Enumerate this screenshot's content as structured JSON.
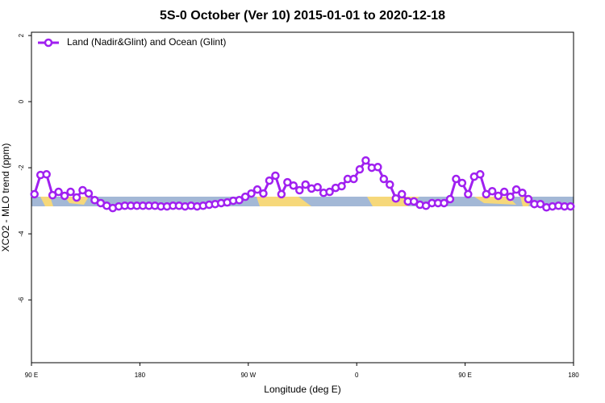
{
  "chart_data": {
    "type": "line",
    "title": "5S-0 October (Ver 10)   2015-01-01 to 2020-12-18",
    "xlabel": "Longitude (deg E)",
    "ylabel": "XCO2 - MLO trend (ppm)",
    "xlim": [
      90,
      540
    ],
    "ylim": [
      -7.9,
      2.1
    ],
    "xticks": [
      {
        "value": 90,
        "label": "90 E"
      },
      180,
      {
        "value": 270,
        "label": "90 W"
      },
      {
        "value": 360,
        "label": "0"
      },
      {
        "value": 450,
        "label": "90 E"
      },
      {
        "value": 540,
        "label": "180"
      }
    ],
    "yticks": [
      2,
      0,
      -2,
      -4,
      -6
    ],
    "legend": "top-left",
    "x": [
      92.5,
      97.5,
      102.5,
      107.5,
      112.5,
      117.5,
      122.5,
      127.5,
      132.5,
      137.5,
      142.5,
      147.5,
      152.5,
      157.5,
      162.5,
      167.5,
      172.5,
      177.5,
      182.5,
      187.5,
      192.5,
      197.5,
      202.5,
      207.5,
      212.5,
      217.5,
      222.5,
      227.5,
      232.5,
      237.5,
      242.5,
      247.5,
      252.5,
      257.5,
      262.5,
      267.5,
      272.5,
      277.5,
      282.5,
      287.5,
      292.5,
      297.5,
      302.5,
      307.5,
      312.5,
      317.5,
      322.5,
      327.5,
      332.5,
      337.5,
      342.5,
      347.5,
      352.5,
      357.5,
      362.5,
      367.5,
      372.5,
      377.5,
      382.5,
      387.5,
      392.5,
      397.5,
      402.5,
      407.5,
      412.5,
      417.5,
      422.5,
      427.5,
      432.5,
      437.5,
      442.5,
      447.5,
      452.5,
      457.5,
      462.5,
      467.5,
      472.5,
      477.5,
      482.5,
      487.5,
      492.5,
      497.5,
      502.5,
      507.5,
      512.5,
      517.5,
      522.5,
      527.5,
      532.5,
      537.5
    ],
    "series": [
      {
        "name": "Land (Nadir&Glint) and Ocean (Glint)",
        "color": "#a020f0",
        "values": [
          -2.8,
          -2.22,
          -2.2,
          -2.83,
          -2.73,
          -2.85,
          -2.73,
          -2.9,
          -2.68,
          -2.78,
          -2.98,
          -3.07,
          -3.15,
          -3.22,
          -3.17,
          -3.15,
          -3.15,
          -3.15,
          -3.15,
          -3.15,
          -3.15,
          -3.17,
          -3.17,
          -3.15,
          -3.15,
          -3.17,
          -3.15,
          -3.17,
          -3.15,
          -3.12,
          -3.1,
          -3.07,
          -3.05,
          -3.0,
          -2.98,
          -2.88,
          -2.78,
          -2.66,
          -2.78,
          -2.39,
          -2.24,
          -2.8,
          -2.44,
          -2.54,
          -2.68,
          -2.51,
          -2.63,
          -2.59,
          -2.76,
          -2.73,
          -2.61,
          -2.56,
          -2.34,
          -2.34,
          -2.05,
          -1.78,
          -2.0,
          -1.98,
          -2.34,
          -2.51,
          -2.93,
          -2.8,
          -3.02,
          -3.02,
          -3.12,
          -3.15,
          -3.07,
          -3.07,
          -3.07,
          -2.95,
          -2.34,
          -2.46,
          -2.8,
          -2.27,
          -2.2,
          -2.8,
          -2.71,
          -2.85,
          -2.73,
          -2.88,
          -2.66,
          -2.76,
          -2.95,
          -3.1,
          -3.1,
          -3.2,
          -3.17,
          -3.15,
          -3.17,
          -3.17
        ]
      }
    ]
  }
}
